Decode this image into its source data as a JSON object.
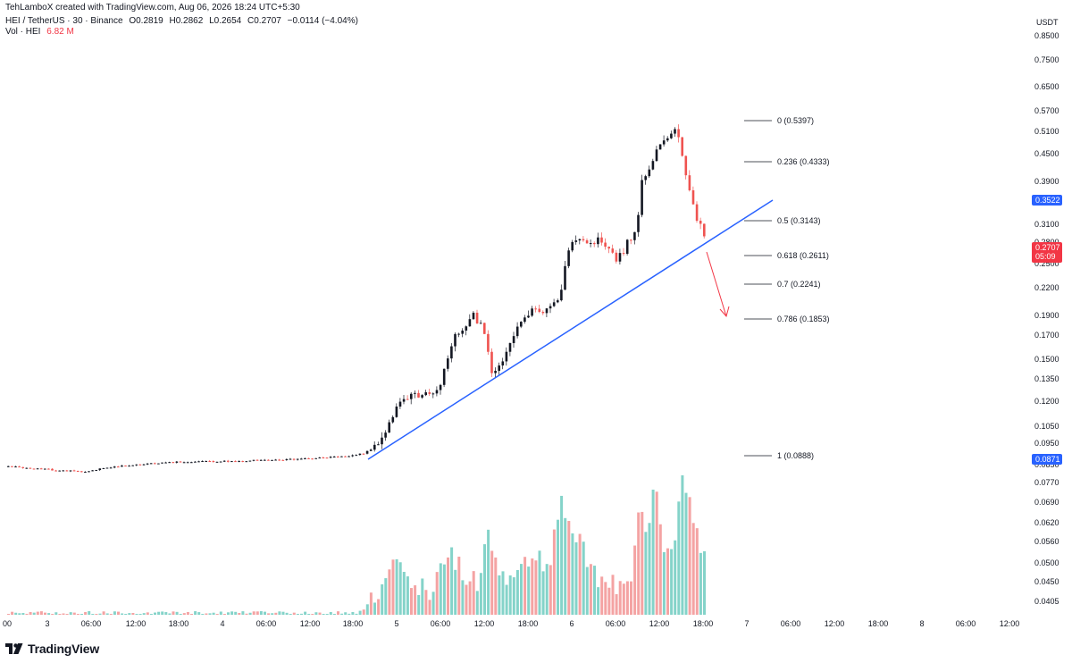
{
  "header": {
    "credit": "TehLamboX created with TradingView.com, Aug 06, 2026 18:24 UTC+5:30",
    "symbol": "HEI / TetherUS · 30 · Binance",
    "open": "O0.2819",
    "high": "H0.2862",
    "low": "L0.2654",
    "close": "C0.2707",
    "change": "−0.0114 (−4.04%)",
    "vol_label": "Vol · HEI",
    "vol_value": "6.82 M"
  },
  "price_axis": {
    "currency": "USDT",
    "labels": [
      "0.8500",
      "0.7500",
      "0.6500",
      "0.5700",
      "0.5100",
      "0.4500",
      "0.3900",
      "0.3100",
      "0.2800",
      "0.2500",
      "0.2200",
      "0.1900",
      "0.1700",
      "0.1500",
      "0.1350",
      "0.1200",
      "0.1050",
      "0.0950",
      "0.0850",
      "0.0770",
      "0.0690",
      "0.0620",
      "0.0560",
      "0.0500",
      "0.0450",
      "0.0405"
    ],
    "tags": [
      {
        "value": "0.3522",
        "color": "#2962ff"
      },
      {
        "value": "0.2707",
        "sub": "05:09",
        "color": "#f23645"
      },
      {
        "value": "0.0871",
        "color": "#2962ff"
      }
    ]
  },
  "time_axis": {
    "labels": [
      "00",
      "3",
      "06:00",
      "12:00",
      "18:00",
      "4",
      "06:00",
      "12:00",
      "18:00",
      "5",
      "06:00",
      "12:00",
      "18:00",
      "6",
      "06:00",
      "12:00",
      "18:00",
      "7",
      "06:00",
      "12:00",
      "18:00",
      "8",
      "06:00",
      "12:00"
    ]
  },
  "fib_levels": [
    {
      "label": "0 (0.5397)"
    },
    {
      "label": "0.236 (0.4333)"
    },
    {
      "label": "0.5 (0.3143)"
    },
    {
      "label": "0.618 (0.2611)"
    },
    {
      "label": "0.7 (0.2241)"
    },
    {
      "label": "0.786 (0.1853)"
    },
    {
      "label": "1 (0.0888)"
    }
  ],
  "colors": {
    "up": "#26a69a",
    "down": "#ef5350",
    "candle_up": "#131722",
    "trendline": "#2962ff",
    "arrow": "#f23645"
  },
  "branding": {
    "logo_text": "TradingView"
  }
}
